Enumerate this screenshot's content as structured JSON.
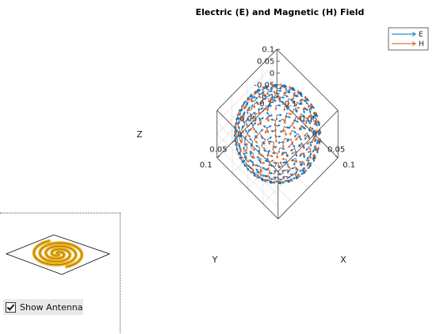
{
  "chart_data": {
    "type": "quiver3d",
    "title": "Electric (E) and Magnetic (H) Field",
    "xlabel": "X",
    "ylabel": "Y",
    "zlabel": "Z",
    "xlim": [
      -0.1,
      0.1
    ],
    "ylim": [
      -0.1,
      0.1
    ],
    "zlim": [
      -0.1,
      0.1
    ],
    "xticks": [
      "-0.1",
      "-0.05",
      "0",
      "0.05",
      "0.1"
    ],
    "yticks": [
      "-0.1",
      "-0.05",
      "0",
      "0.05",
      "0.1"
    ],
    "zticks": [
      "-0.1",
      "-0.05",
      "0",
      "0.05",
      "0.1"
    ],
    "sphere_radius": 0.1,
    "grid": true,
    "legend_position": "top-right",
    "series": [
      {
        "name": "E",
        "color": "#0072BD",
        "direction": "tangential-azimuthal"
      },
      {
        "name": "H",
        "color": "#D95319",
        "direction": "tangential-polar"
      }
    ]
  },
  "antenna": {
    "icon": "spiral-antenna-icon",
    "color": "#EDB120"
  },
  "controls": {
    "show_antenna_label": "Show Antenna",
    "show_antenna_checked": true
  }
}
